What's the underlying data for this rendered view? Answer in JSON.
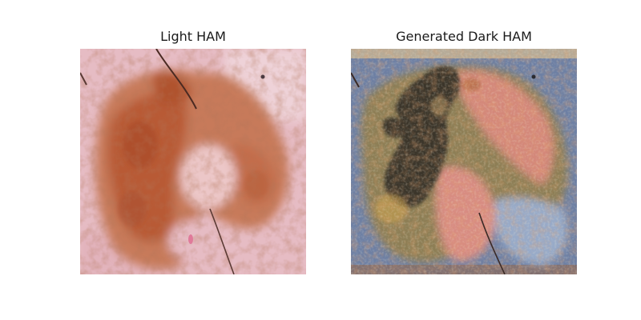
{
  "figure": {
    "panels": [
      {
        "title": "Light HAM"
      },
      {
        "title": "Generated Dark HAM"
      }
    ]
  },
  "colors": {
    "light_background": "#e8bfc6",
    "light_lesion": "#c06a4a",
    "dark_background": "#6b7fa3",
    "dark_lesion_core": "#3a3428",
    "dark_lesion_mid": "#8a7a52",
    "dark_skin_pink": "#d98a7e",
    "top_strip": "#b6ab98"
  }
}
